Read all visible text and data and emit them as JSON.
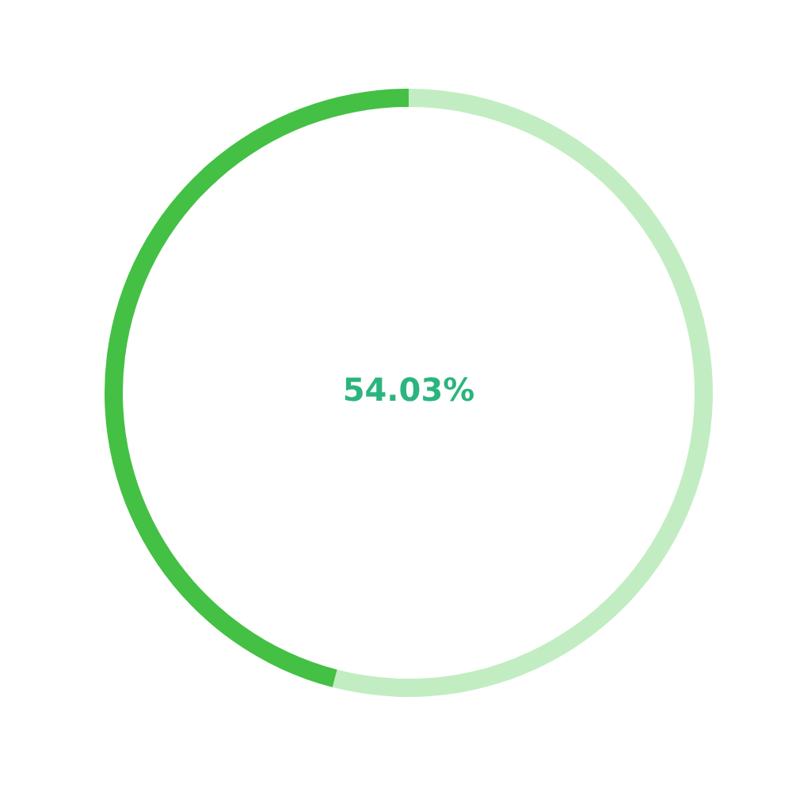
{
  "chart_data": {
    "type": "donut",
    "categories": [
      null,
      null
    ],
    "values": [
      54.03,
      45.97
    ],
    "colors": [
      "#c2edc2",
      "#44c045"
    ],
    "annotations": [
      "54.03%"
    ],
    "legend": false
  }
}
